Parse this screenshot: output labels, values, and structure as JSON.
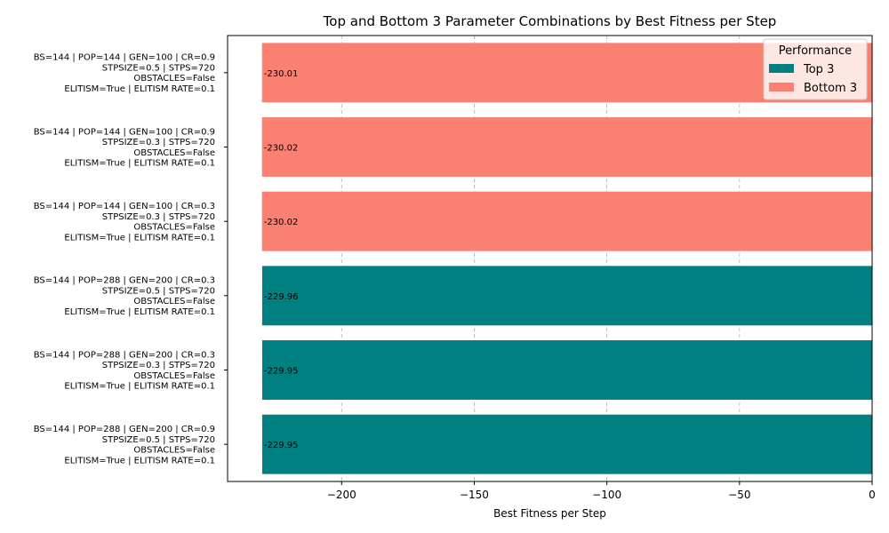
{
  "chart_data": {
    "type": "bar",
    "orientation": "horizontal",
    "title": "Top and Bottom 3 Parameter Combinations by Best Fitness per Step",
    "xlabel": "Best Fitness per Step",
    "ylabel": "",
    "xlim": [
      -243,
      0
    ],
    "xticks": [
      -200,
      -150,
      -100,
      -50,
      0
    ],
    "xtick_labels": [
      "−200",
      "−150",
      "−100",
      "−50",
      "0"
    ],
    "grid": "x dashed",
    "legend": {
      "title": "Performance",
      "placement": "top-right",
      "entries": [
        {
          "label": "Top 3",
          "color": "#008080"
        },
        {
          "label": "Bottom 3",
          "color": "#FA8072"
        }
      ]
    },
    "categories": [
      [
        "BS=144 | POP=288 | GEN=200 | CR=0.9",
        "STPSIZE=0.5 | STPS=720",
        "OBSTACLES=False",
        "ELITISM=True | ELITISM RATE=0.1"
      ],
      [
        "BS=144 | POP=288 | GEN=200 | CR=0.3",
        "STPSIZE=0.3 | STPS=720",
        "OBSTACLES=False",
        "ELITISM=True | ELITISM RATE=0.1"
      ],
      [
        "BS=144 | POP=288 | GEN=200 | CR=0.3",
        "STPSIZE=0.5 | STPS=720",
        "OBSTACLES=False",
        "ELITISM=True | ELITISM RATE=0.1"
      ],
      [
        "BS=144 | POP=144 | GEN=100 | CR=0.3",
        "STPSIZE=0.3 | STPS=720",
        "OBSTACLES=False",
        "ELITISM=True | ELITISM RATE=0.1"
      ],
      [
        "BS=144 | POP=144 | GEN=100 | CR=0.9",
        "STPSIZE=0.3 | STPS=720",
        "OBSTACLES=False",
        "ELITISM=True | ELITISM RATE=0.1"
      ],
      [
        "BS=144 | POP=144 | GEN=100 | CR=0.9",
        "STPSIZE=0.5 | STPS=720",
        "OBSTACLES=False",
        "ELITISM=True | ELITISM RATE=0.1"
      ]
    ],
    "values": [
      -229.95,
      -229.95,
      -229.96,
      -230.02,
      -230.02,
      -230.01
    ],
    "value_labels": [
      "-229.95",
      "-229.95",
      "-229.96",
      "-230.02",
      "-230.02",
      "-230.01"
    ],
    "groups": [
      "Top 3",
      "Top 3",
      "Top 3",
      "Bottom 3",
      "Bottom 3",
      "Bottom 3"
    ],
    "colors": {
      "Top 3": "#008080",
      "Bottom 3": "#FA8072"
    }
  }
}
